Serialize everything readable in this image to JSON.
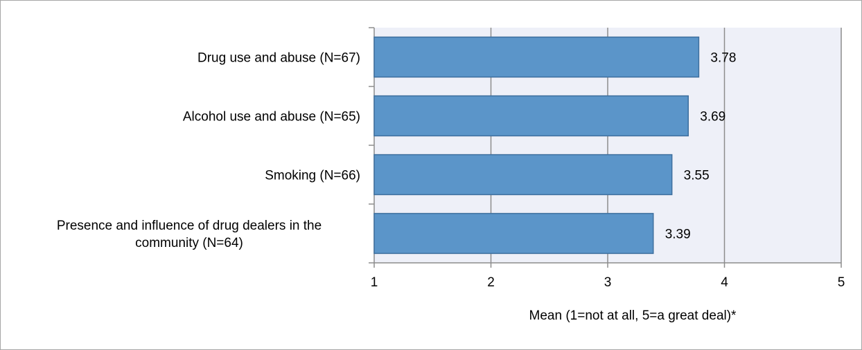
{
  "chart_data": {
    "type": "bar",
    "orientation": "horizontal",
    "categories": [
      [
        "Drug use and abuse (N=67)"
      ],
      [
        "Alcohol use and abuse (N=65)"
      ],
      [
        "Smoking (N=66)"
      ],
      [
        "Presence and influence of drug dealers in the",
        "community (N=64)"
      ]
    ],
    "values": [
      3.78,
      3.69,
      3.55,
      3.39
    ],
    "data_labels": [
      "3.78",
      "3.69",
      "3.55",
      "3.39"
    ],
    "xlabel": "Mean (1=not at all, 5=a great deal)*",
    "xlim": [
      1,
      5
    ],
    "xticks": [
      1,
      2,
      3,
      4,
      5
    ],
    "grid": "vertical",
    "legend": "none",
    "colors": {
      "bar_fill": "#5B95C9",
      "bar_stroke": "#3E6F9E",
      "plot_bg": "#EEF0F8",
      "gridline": "#8C8C8C",
      "frame": "#A6A6A6"
    }
  }
}
